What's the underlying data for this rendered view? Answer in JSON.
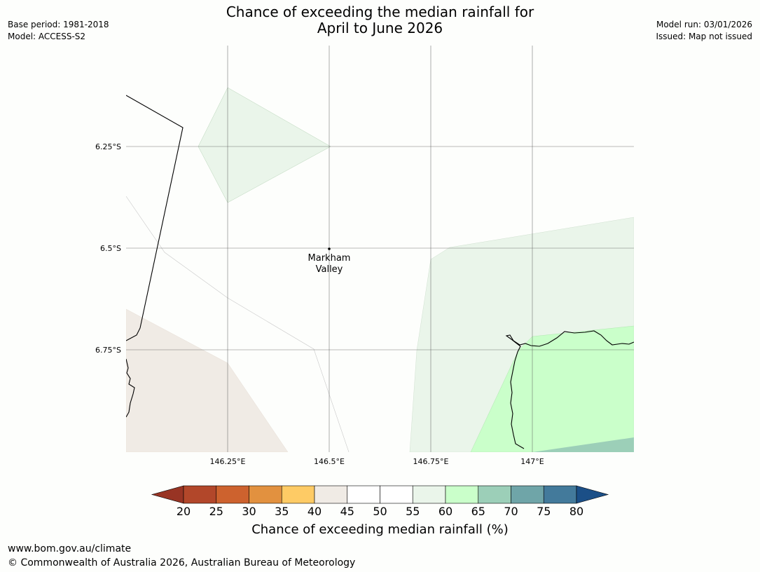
{
  "header": {
    "title_line1": "Chance of exceeding the median rainfall for",
    "title_line2": "April to June 2026",
    "base_period": "Base period: 1981-2018",
    "model": "Model: ACCESS-S2",
    "model_run": "Model run: 03/01/2026",
    "issued": "Issued: Map not issued"
  },
  "map": {
    "lat_labels": [
      "6.25°S",
      "6.5°S",
      "6.75°S"
    ],
    "lon_labels": [
      "146.25°E",
      "146.5°E",
      "146.75°E",
      "147°E"
    ],
    "place": {
      "name_line1": "Markham",
      "name_line2": "Valley"
    }
  },
  "colorbar": {
    "ticks": [
      "20",
      "25",
      "30",
      "35",
      "40",
      "45",
      "50",
      "55",
      "60",
      "65",
      "70",
      "75",
      "80"
    ],
    "colors": [
      "#b2472a",
      "#cd622e",
      "#e2913f",
      "#fecb65",
      "#f0ebe5",
      "#ffffff",
      "#ffffff",
      "#eaf5ea",
      "#caffca",
      "#9ccfb8",
      "#6fa5a8",
      "#437a9b"
    ],
    "under_color": "#983424",
    "over_color": "#1b4f87",
    "label": "Chance of exceeding median rainfall (%)"
  },
  "footer": {
    "url": "www.bom.gov.au/climate",
    "copyright": "© Commonwealth of Australia 2026, Australian Bureau of Meteorology"
  }
}
